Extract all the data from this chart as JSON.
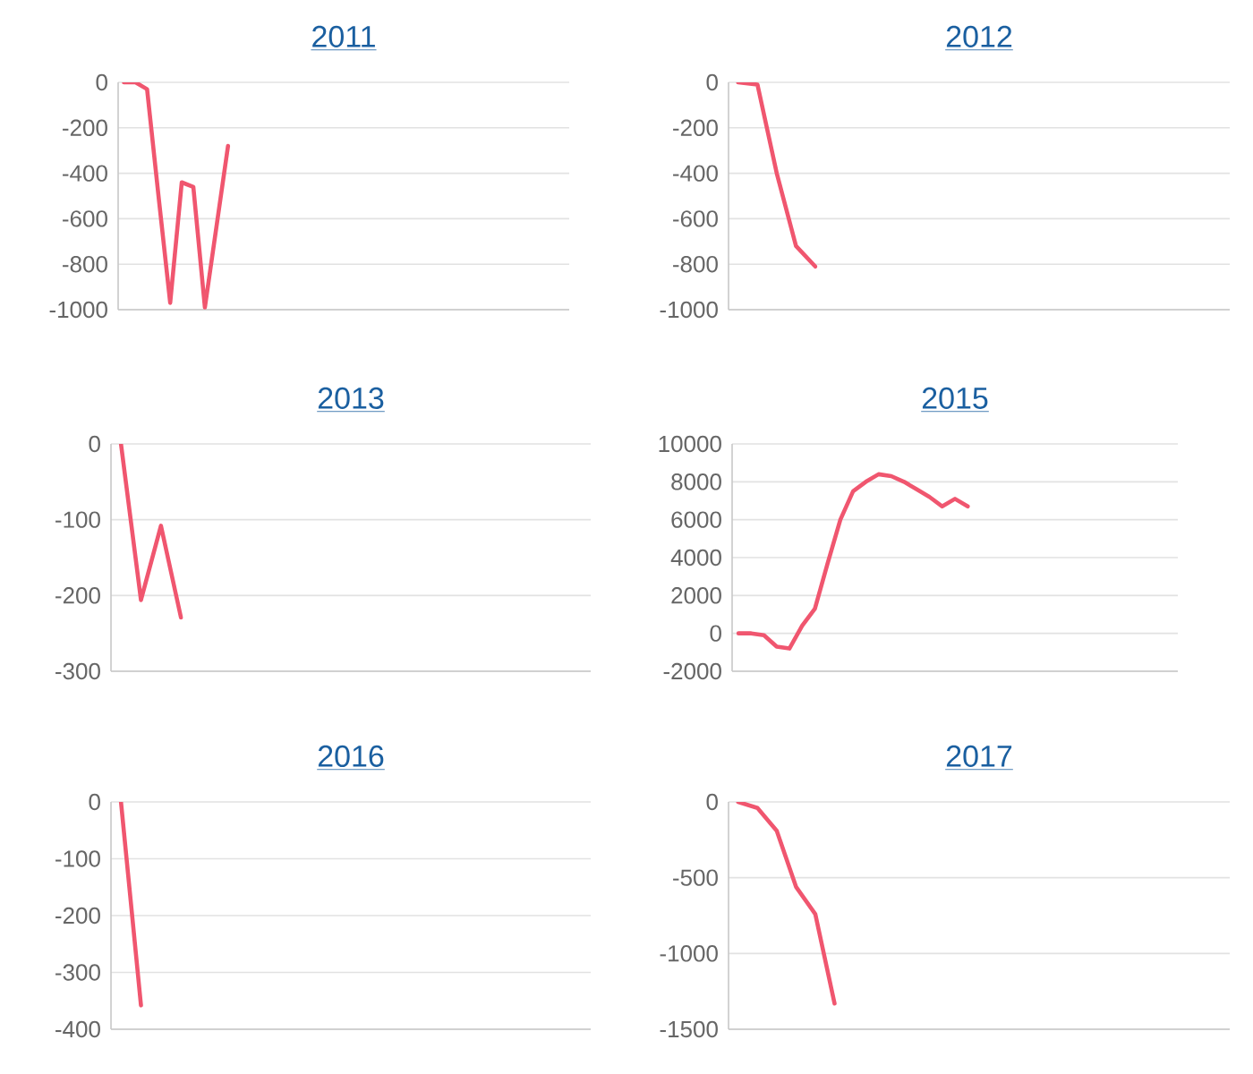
{
  "chart_data": [
    {
      "type": "line",
      "title": "2011",
      "color": "#f0566f",
      "grid": "y",
      "tick_labels": "y",
      "ylim": [
        -1000,
        0
      ],
      "yticks": [
        0,
        -200,
        -400,
        -600,
        -800,
        -1000
      ],
      "categories": [
        null,
        null,
        null,
        null,
        null,
        null,
        null,
        null,
        null,
        null,
        null,
        null,
        null,
        null,
        null,
        null,
        null,
        null,
        null,
        null,
        null,
        null,
        null,
        null,
        null,
        null,
        null,
        null,
        null,
        null,
        null,
        null,
        null,
        null,
        null,
        null,
        null,
        null,
        null
      ],
      "values": [
        0,
        0,
        -30,
        -505,
        -970,
        -440,
        -460,
        -990,
        -635,
        -280,
        null,
        null,
        null,
        null,
        null,
        null,
        null,
        null,
        null,
        null,
        null,
        null,
        null,
        null,
        null,
        null,
        null,
        null,
        null,
        null,
        null,
        null,
        null,
        null,
        null,
        null,
        null,
        null,
        null
      ]
    },
    {
      "type": "line",
      "title": "2012",
      "color": "#f0566f",
      "grid": "y",
      "tick_labels": "y",
      "ylim": [
        -1000,
        0
      ],
      "yticks": [
        0,
        -200,
        -400,
        -600,
        -800,
        -1000
      ],
      "categories": [
        null,
        null,
        null,
        null,
        null,
        null,
        null,
        null,
        null,
        null,
        null,
        null,
        null,
        null,
        null,
        null,
        null,
        null,
        null,
        null,
        null,
        null,
        null,
        null,
        null,
        null
      ],
      "values": [
        0,
        -10,
        -400,
        -720,
        -810,
        null,
        null,
        null,
        null,
        null,
        null,
        null,
        null,
        null,
        null,
        null,
        null,
        null,
        null,
        null,
        null,
        null,
        null,
        null,
        null,
        null
      ]
    },
    {
      "type": "line",
      "title": "2013",
      "color": "#f0566f",
      "grid": "y",
      "tick_labels": "y",
      "ylim": [
        -300,
        0
      ],
      "yticks": [
        0,
        -100,
        -200,
        -300
      ],
      "categories": [
        null,
        null,
        null,
        null,
        null,
        null,
        null,
        null,
        null,
        null,
        null,
        null,
        null,
        null,
        null,
        null,
        null,
        null,
        null,
        null,
        null,
        null,
        null,
        null
      ],
      "values": [
        0,
        -206,
        -108,
        -229,
        null,
        null,
        null,
        null,
        null,
        null,
        null,
        null,
        null,
        null,
        null,
        null,
        null,
        null,
        null,
        null,
        null,
        null,
        null,
        null
      ]
    },
    {
      "type": "line",
      "title": "2015",
      "color": "#f0566f",
      "grid": "y",
      "tick_labels": "y",
      "ylim": [
        -2000,
        10000
      ],
      "yticks": [
        10000,
        8000,
        6000,
        4000,
        2000,
        0,
        -2000
      ],
      "categories": [
        null,
        null,
        null,
        null,
        null,
        null,
        null,
        null,
        null,
        null,
        null,
        null,
        null,
        null,
        null,
        null,
        null,
        null,
        null,
        null,
        null,
        null,
        null,
        null,
        null,
        null,
        null,
        null,
        null,
        null,
        null,
        null,
        null,
        null,
        null
      ],
      "values": [
        0,
        0,
        -100,
        -700,
        -800,
        400,
        1300,
        3700,
        6000,
        7500,
        8000,
        8400,
        8300,
        8000,
        7600,
        7200,
        6700,
        7100,
        6700,
        null,
        null,
        null,
        null,
        null,
        null,
        null,
        null,
        null,
        null,
        null,
        null,
        null,
        null,
        null,
        null
      ]
    },
    {
      "type": "line",
      "title": "2016",
      "color": "#f0566f",
      "grid": "y",
      "tick_labels": "y",
      "ylim": [
        -400,
        0
      ],
      "yticks": [
        0,
        -100,
        -200,
        -300,
        -400
      ],
      "categories": [
        null,
        null,
        null,
        null,
        null,
        null,
        null,
        null,
        null,
        null,
        null,
        null,
        null,
        null,
        null,
        null,
        null,
        null,
        null,
        null,
        null,
        null,
        null,
        null
      ],
      "values": [
        0,
        -358,
        null,
        null,
        null,
        null,
        null,
        null,
        null,
        null,
        null,
        null,
        null,
        null,
        null,
        null,
        null,
        null,
        null,
        null,
        null,
        null,
        null,
        null
      ]
    },
    {
      "type": "line",
      "title": "2017",
      "color": "#f0566f",
      "grid": "y",
      "tick_labels": "y",
      "ylim": [
        -1500,
        0
      ],
      "yticks": [
        0,
        -500,
        -1000,
        -1500
      ],
      "categories": [
        null,
        null,
        null,
        null,
        null,
        null,
        null,
        null,
        null,
        null,
        null,
        null,
        null,
        null,
        null,
        null,
        null,
        null,
        null,
        null,
        null,
        null,
        null,
        null,
        null,
        null
      ],
      "values": [
        0,
        -40,
        -190,
        -560,
        -740,
        -1330,
        null,
        null,
        null,
        null,
        null,
        null,
        null,
        null,
        null,
        null,
        null,
        null,
        null,
        null,
        null,
        null,
        null,
        null,
        null,
        null
      ]
    }
  ]
}
